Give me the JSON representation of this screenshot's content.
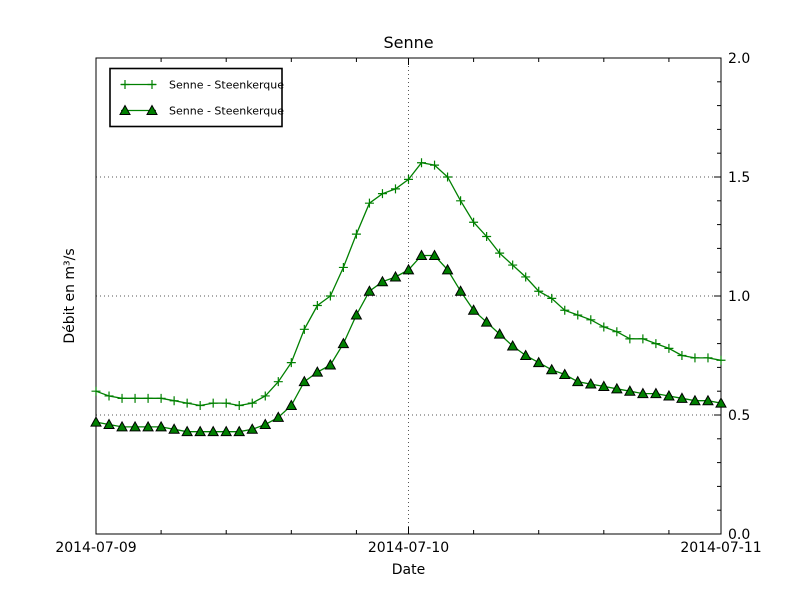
{
  "chart_data": {
    "type": "line",
    "title": "Senne",
    "xlabel": "Date",
    "ylabel": "Débit en m³/s",
    "x_tick_labels": [
      "2014-07-09",
      "2014-07-10",
      "2014-07-11"
    ],
    "x_tick_hours": [
      0,
      24,
      48
    ],
    "x_minor_tick_hours": [
      5,
      10,
      15,
      20,
      29,
      34,
      39,
      44
    ],
    "x_range_hours": [
      0,
      48
    ],
    "ylim": [
      0.0,
      2.0
    ],
    "y_tick_values": [
      0.0,
      0.5,
      1.0,
      1.5,
      2.0
    ],
    "y_tick_labels": [
      "0.0",
      "0.5",
      "1.0",
      "1.5",
      "2.0"
    ],
    "y_minor_step": 0.1,
    "grid": {
      "h_lines": [
        0.5,
        1.0,
        1.5
      ],
      "v_lines_hours": [
        24
      ],
      "style": "dotted"
    },
    "legend_position": "upper-left",
    "colors": {
      "line_green": "#008000",
      "marker_edge": "#000000",
      "axis": "#000000",
      "grid": "#555555"
    },
    "x_hours": [
      0,
      1,
      2,
      3,
      4,
      5,
      6,
      7,
      8,
      9,
      10,
      11,
      12,
      13,
      14,
      15,
      16,
      17,
      18,
      19,
      20,
      21,
      22,
      23,
      24,
      25,
      26,
      27,
      28,
      29,
      30,
      31,
      32,
      33,
      34,
      35,
      36,
      37,
      38,
      39,
      40,
      41,
      42,
      43,
      44,
      45,
      46,
      47,
      48
    ],
    "series": [
      {
        "name": "Senne - Steenkerque",
        "marker": "plus",
        "values": [
          0.6,
          0.58,
          0.57,
          0.57,
          0.57,
          0.57,
          0.56,
          0.55,
          0.54,
          0.55,
          0.55,
          0.54,
          0.55,
          0.58,
          0.64,
          0.72,
          0.86,
          0.96,
          1.0,
          1.12,
          1.26,
          1.39,
          1.43,
          1.45,
          1.49,
          1.56,
          1.55,
          1.5,
          1.4,
          1.31,
          1.25,
          1.18,
          1.13,
          1.08,
          1.02,
          0.99,
          0.94,
          0.92,
          0.9,
          0.87,
          0.85,
          0.82,
          0.82,
          0.8,
          0.78,
          0.75,
          0.74,
          0.74,
          0.73
        ]
      },
      {
        "name": "Senne - Steenkerque",
        "marker": "triangle",
        "values": [
          0.47,
          0.46,
          0.45,
          0.45,
          0.45,
          0.45,
          0.44,
          0.43,
          0.43,
          0.43,
          0.43,
          0.43,
          0.44,
          0.46,
          0.49,
          0.54,
          0.64,
          0.68,
          0.71,
          0.8,
          0.92,
          1.02,
          1.06,
          1.08,
          1.11,
          1.17,
          1.17,
          1.11,
          1.02,
          0.94,
          0.89,
          0.84,
          0.79,
          0.75,
          0.72,
          0.69,
          0.67,
          0.64,
          0.63,
          0.62,
          0.61,
          0.6,
          0.59,
          0.59,
          0.58,
          0.57,
          0.56,
          0.56,
          0.55
        ]
      }
    ]
  }
}
